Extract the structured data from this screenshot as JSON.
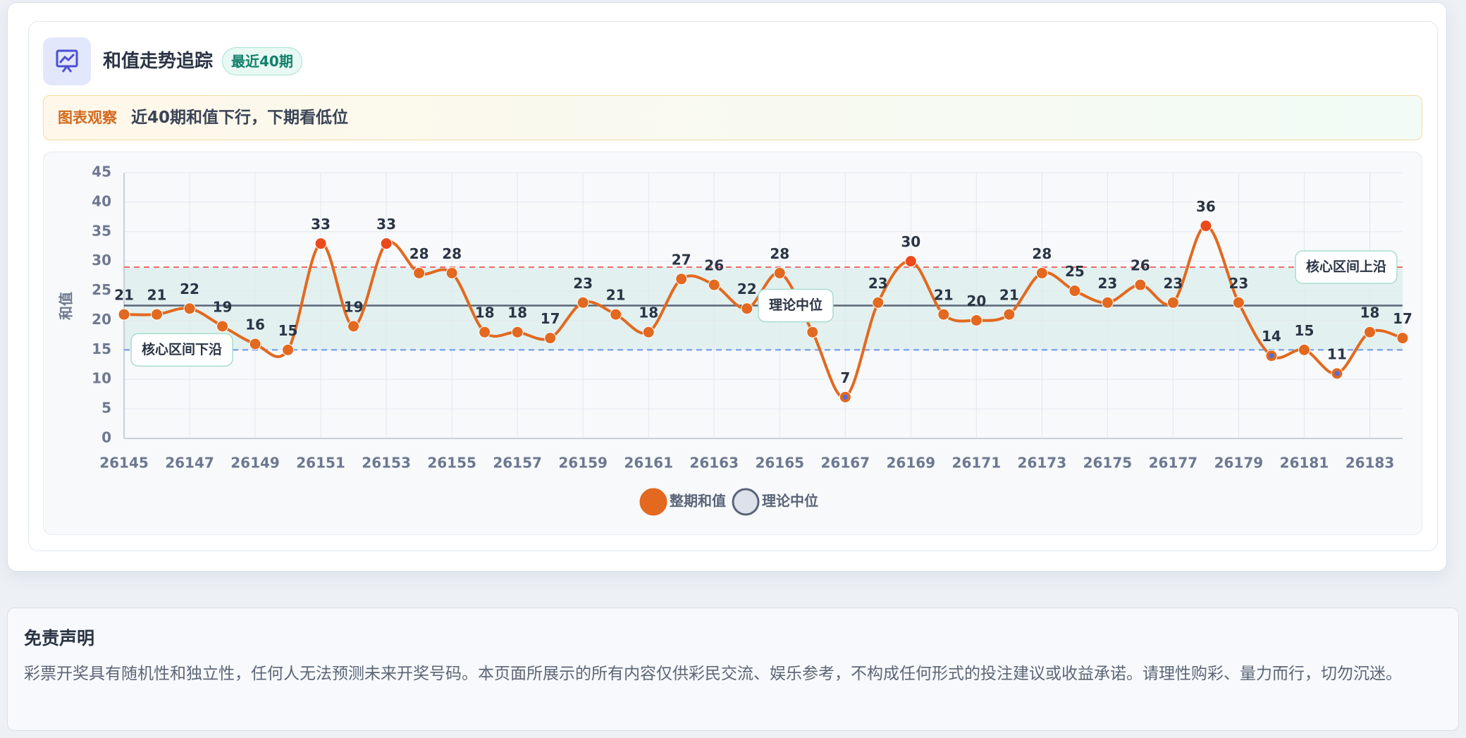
{
  "header": {
    "title": "和值走势追踪",
    "badge": "最近40期"
  },
  "observation": {
    "label": "图表观察",
    "text": "近40期和值下行，下期看低位"
  },
  "chart_data": {
    "type": "line",
    "y_label": "和值",
    "x": [
      26145,
      26146,
      26147,
      26148,
      26149,
      26150,
      26151,
      26152,
      26153,
      26154,
      26155,
      26156,
      26157,
      26158,
      26159,
      26160,
      26161,
      26162,
      26163,
      26164,
      26165,
      26166,
      26167,
      26168,
      26169,
      26170,
      26171,
      26172,
      26173,
      26174,
      26175,
      26176,
      26177,
      26178,
      26179,
      26180,
      26181,
      26182,
      26183,
      26184
    ],
    "series": [
      {
        "name": "整期和值",
        "color": "#e2691f",
        "values": [
          21,
          21,
          22,
          19,
          16,
          15,
          33,
          19,
          33,
          28,
          28,
          18,
          18,
          17,
          23,
          21,
          18,
          27,
          26,
          22,
          28,
          18,
          7,
          23,
          30,
          21,
          20,
          21,
          28,
          25,
          23,
          26,
          23,
          36,
          23,
          14,
          15,
          11,
          18,
          17
        ]
      }
    ],
    "xlim": [
      26145,
      26184
    ],
    "xticks": [
      26145,
      26147,
      26149,
      26151,
      26153,
      26155,
      26157,
      26159,
      26161,
      26163,
      26165,
      26167,
      26169,
      26171,
      26173,
      26175,
      26177,
      26179,
      26181,
      26183
    ],
    "ylim": [
      0,
      45
    ],
    "yticks": [
      0,
      5,
      10,
      15,
      20,
      25,
      30,
      35,
      40,
      45
    ],
    "grid": true,
    "smooth": true,
    "reference_lines": [
      {
        "label": "核心区间上沿",
        "value": 29,
        "color": "#ef6b6b",
        "style": "dashed",
        "label_position": "right"
      },
      {
        "label": "核心区间下沿",
        "value": 15,
        "color": "#6b95e8",
        "style": "dashed",
        "label_position": "left"
      },
      {
        "label": "理论中位",
        "value": 22.5,
        "color": "#5b6478",
        "style": "solid",
        "label_position": "center",
        "legend": true
      }
    ]
  },
  "disclaimer": {
    "title": "免责声明",
    "text": "彩票开奖具有随机性和独立性，任何人无法预测未来开奖号码。本页面所展示的所有内容仅供彩民交流、娱乐参考，不构成任何形式的投注建议或收益承诺。请理性购彩、量力而行，切勿沉迷。"
  }
}
